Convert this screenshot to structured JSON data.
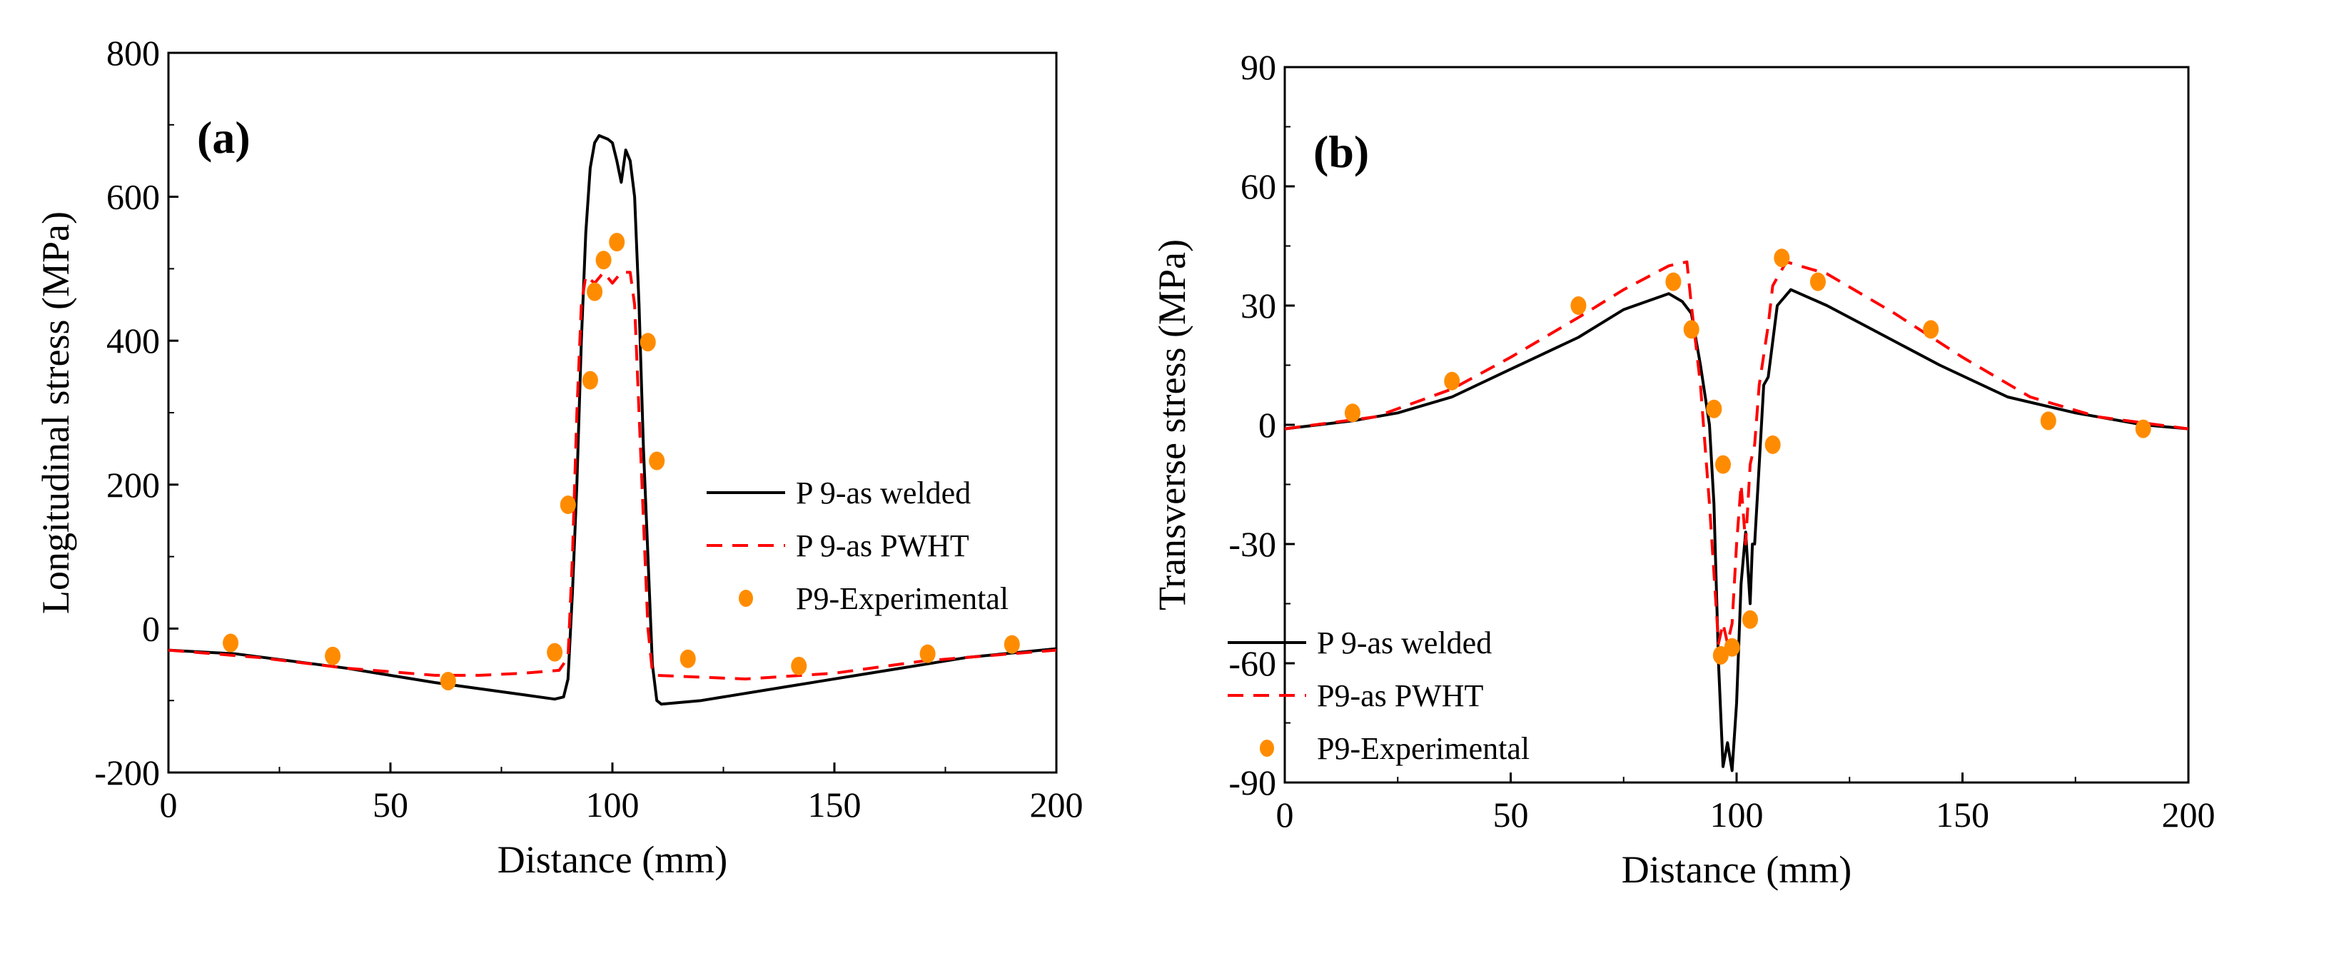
{
  "colors": {
    "welded": "#000000",
    "pwht": "#ff0000",
    "exp": "#ff8c00"
  },
  "chart_data": [
    {
      "type": "line",
      "panel_label": "(a)",
      "xlabel": "Distance (mm)",
      "ylabel": "Longitudinal stress (MPa)",
      "xlim": [
        0,
        200
      ],
      "ylim": [
        -200,
        800
      ],
      "xticks": [
        0,
        50,
        100,
        150,
        200
      ],
      "yticks": [
        -200,
        0,
        200,
        400,
        600,
        800
      ],
      "legend_position": "center-right",
      "series": [
        {
          "name": "P 9-as welded",
          "style": "solid",
          "points": [
            [
              0,
              -30
            ],
            [
              15,
              -35
            ],
            [
              40,
              -55
            ],
            [
              60,
              -75
            ],
            [
              80,
              -92
            ],
            [
              87,
              -98
            ],
            [
              89,
              -95
            ],
            [
              90,
              -70
            ],
            [
              91,
              50
            ],
            [
              92,
              200
            ],
            [
              93,
              400
            ],
            [
              94,
              550
            ],
            [
              95,
              640
            ],
            [
              96,
              675
            ],
            [
              97,
              685
            ],
            [
              99,
              680
            ],
            [
              100,
              675
            ],
            [
              101,
              650
            ],
            [
              102,
              620
            ],
            [
              103,
              665
            ],
            [
              104,
              650
            ],
            [
              105,
              600
            ],
            [
              106,
              450
            ],
            [
              107,
              250
            ],
            [
              108,
              100
            ],
            [
              109,
              -50
            ],
            [
              110,
              -100
            ],
            [
              111,
              -105
            ],
            [
              120,
              -100
            ],
            [
              140,
              -80
            ],
            [
              160,
              -60
            ],
            [
              180,
              -40
            ],
            [
              200,
              -28
            ]
          ]
        },
        {
          "name": "P 9-as PWHT",
          "style": "dashed",
          "points": [
            [
              0,
              -30
            ],
            [
              20,
              -40
            ],
            [
              40,
              -55
            ],
            [
              60,
              -65
            ],
            [
              70,
              -65
            ],
            [
              80,
              -62
            ],
            [
              88,
              -58
            ],
            [
              90,
              -40
            ],
            [
              91,
              100
            ],
            [
              92,
              300
            ],
            [
              93,
              450
            ],
            [
              94,
              490
            ],
            [
              96,
              480
            ],
            [
              98,
              495
            ],
            [
              100,
              480
            ],
            [
              102,
              495
            ],
            [
              104,
              495
            ],
            [
              105,
              450
            ],
            [
              106,
              300
            ],
            [
              107,
              150
            ],
            [
              108,
              0
            ],
            [
              109,
              -60
            ],
            [
              110,
              -65
            ],
            [
              130,
              -70
            ],
            [
              150,
              -62
            ],
            [
              170,
              -45
            ],
            [
              200,
              -30
            ]
          ]
        },
        {
          "name": "P9-Experimental",
          "style": "markers",
          "points": [
            [
              14,
              -20
            ],
            [
              37,
              -38
            ],
            [
              63,
              -73
            ],
            [
              87,
              -33
            ],
            [
              90,
              172
            ],
            [
              95,
              345
            ],
            [
              96,
              468
            ],
            [
              98,
              512
            ],
            [
              101,
              537
            ],
            [
              108,
              398
            ],
            [
              110,
              233
            ],
            [
              117,
              -42
            ],
            [
              142,
              -52
            ],
            [
              171,
              -35
            ],
            [
              190,
              -22
            ]
          ]
        }
      ]
    },
    {
      "type": "line",
      "panel_label": "(b)",
      "xlabel": "Distance (mm)",
      "ylabel": "Transverse stress (MPa)",
      "xlim": [
        0,
        200
      ],
      "ylim": [
        -90,
        90
      ],
      "xticks": [
        0,
        50,
        100,
        150,
        200
      ],
      "yticks": [
        -90,
        -60,
        -30,
        0,
        30,
        60,
        90
      ],
      "legend_position": "bottom-right",
      "series": [
        {
          "name": "P 9-as welded",
          "style": "solid",
          "points": [
            [
              0,
              -1
            ],
            [
              15,
              1
            ],
            [
              25,
              3
            ],
            [
              37,
              7
            ],
            [
              50,
              14
            ],
            [
              65,
              22
            ],
            [
              75,
              29
            ],
            [
              85,
              33
            ],
            [
              88,
              31
            ],
            [
              90,
              28
            ],
            [
              92,
              15
            ],
            [
              94,
              0
            ],
            [
              95,
              -20
            ],
            [
              96,
              -60
            ],
            [
              97,
              -86
            ],
            [
              98,
              -80
            ],
            [
              99,
              -87
            ],
            [
              100,
              -70
            ],
            [
              101,
              -40
            ],
            [
              102,
              -27
            ],
            [
              103,
              -45
            ],
            [
              103.5,
              -30
            ],
            [
              104,
              -30
            ],
            [
              105,
              -10
            ],
            [
              106,
              10
            ],
            [
              107,
              12
            ],
            [
              109,
              30
            ],
            [
              112,
              34
            ],
            [
              120,
              30
            ],
            [
              130,
              24
            ],
            [
              145,
              15
            ],
            [
              160,
              7
            ],
            [
              175,
              3
            ],
            [
              190,
              0
            ],
            [
              200,
              -1
            ]
          ]
        },
        {
          "name": "P9-as PWHT",
          "style": "dashed",
          "points": [
            [
              0,
              -1
            ],
            [
              20,
              2
            ],
            [
              37,
              9
            ],
            [
              50,
              17
            ],
            [
              65,
              27
            ],
            [
              75,
              34
            ],
            [
              85,
              40
            ],
            [
              89,
              41
            ],
            [
              90,
              30
            ],
            [
              92,
              10
            ],
            [
              94,
              -20
            ],
            [
              96,
              -55
            ],
            [
              97,
              -50
            ],
            [
              98,
              -55
            ],
            [
              99,
              -50
            ],
            [
              100,
              -30
            ],
            [
              101,
              -15
            ],
            [
              102,
              -30
            ],
            [
              103,
              -10
            ],
            [
              104,
              -5
            ],
            [
              105,
              10
            ],
            [
              107,
              25
            ],
            [
              108,
              35
            ],
            [
              111,
              41
            ],
            [
              120,
              38
            ],
            [
              135,
              28
            ],
            [
              150,
              17
            ],
            [
              165,
              7
            ],
            [
              180,
              2
            ],
            [
              200,
              -1
            ]
          ]
        },
        {
          "name": "P9-Experimental",
          "style": "markers",
          "points": [
            [
              15,
              3
            ],
            [
              37,
              11
            ],
            [
              65,
              30
            ],
            [
              86,
              36
            ],
            [
              90,
              24
            ],
            [
              95,
              4
            ],
            [
              97,
              -10
            ],
            [
              96.5,
              -58
            ],
            [
              99,
              -56
            ],
            [
              103,
              -49
            ],
            [
              108,
              -5
            ],
            [
              110,
              42
            ],
            [
              118,
              36
            ],
            [
              143,
              24
            ],
            [
              169,
              1
            ],
            [
              190,
              -1
            ]
          ]
        }
      ]
    }
  ]
}
